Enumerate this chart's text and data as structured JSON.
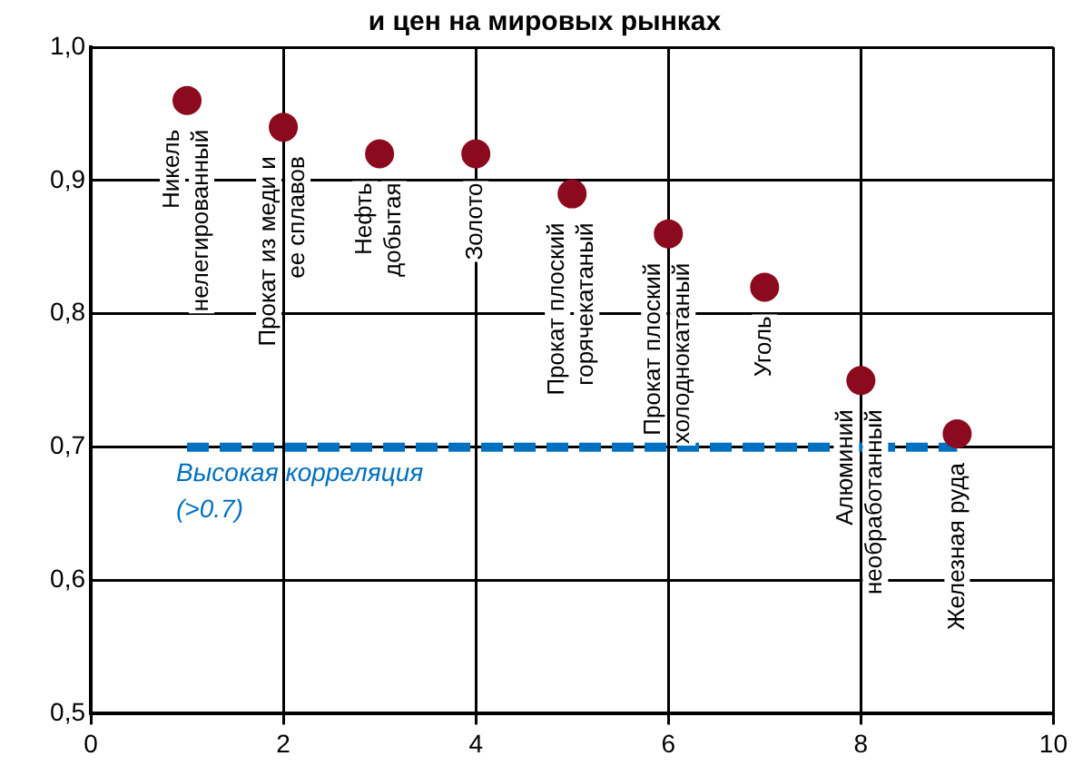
{
  "chart_data": {
    "type": "scatter",
    "title": "и цен на мировых рынках",
    "x": [
      1,
      2,
      3,
      4,
      5,
      6,
      7,
      8,
      9
    ],
    "series": [
      {
        "color": "#8b0a1e",
        "values": [
          0.96,
          0.94,
          0.92,
          0.92,
          0.89,
          0.86,
          0.82,
          0.75,
          0.71
        ]
      }
    ],
    "marker": "circle",
    "xlim": [
      0,
      10
    ],
    "xticks": [
      0,
      2,
      4,
      6,
      8,
      10
    ],
    "ylim": [
      0.5,
      1.0
    ],
    "yticks": [
      {
        "value": 0.5,
        "label": "0,5"
      },
      {
        "value": 0.6,
        "label": "0,6"
      },
      {
        "value": 0.7,
        "label": "0,7"
      },
      {
        "value": 0.8,
        "label": "0,8"
      },
      {
        "value": 0.9,
        "label": "0,9"
      },
      {
        "value": 1.0,
        "label": "1,0"
      }
    ],
    "grid": true,
    "legend": false,
    "ref_lines": [
      {
        "axis": "y",
        "value": 0.7,
        "label": "Высокая корреляция\n(>0.7)",
        "color": "#0070c0",
        "line_style": "dashed"
      }
    ],
    "annotations": [
      {
        "text": "Никель\nнелегированный",
        "x": 1,
        "y": 0.96
      },
      {
        "text": "Прокат из меди и\nее сплавов",
        "x": 2,
        "y": 0.94
      },
      {
        "text": "Нефть\nдобытая",
        "x": 3,
        "y": 0.92
      },
      {
        "text": "Золото",
        "x": 4,
        "y": 0.92
      },
      {
        "text": "Прокат плоский\nгорячекатаный",
        "x": 5,
        "y": 0.89
      },
      {
        "text": "Прокат плоский\nхолоднокатаный",
        "x": 6,
        "y": 0.86
      },
      {
        "text": "Уголь",
        "x": 7,
        "y": 0.82
      },
      {
        "text": "Алюминий\nнеобработанный",
        "x": 8,
        "y": 0.75
      },
      {
        "text": "Железная руда",
        "x": 9,
        "y": 0.71
      }
    ]
  }
}
